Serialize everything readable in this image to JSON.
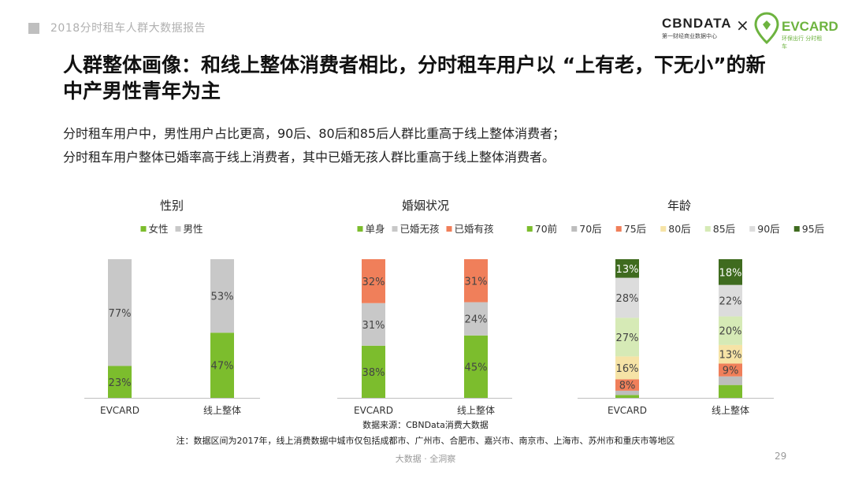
{
  "header": {
    "title": "2018分时租车人群大数据报告"
  },
  "brand": {
    "cbn_name": "CBNDATA",
    "cbn_sub": "第一财经商业数据中心",
    "times": "×",
    "ev_name": "EVCARD",
    "ev_sub": "环保出行 分时租车"
  },
  "main": {
    "title": "人群整体画像：和线上整体消费者相比，分时租车用户以 “上有老，下无小”的新中产男性青年为主",
    "sub1": "分时租车用户中，男性用户占比更高，90后、80后和85后人群比重高于线上整体消费者；",
    "sub2": "分时租车用户整体已婚率高于线上消费者，其中已婚无孩人群比重高于线上整体消费者。"
  },
  "chart_data": [
    {
      "type": "bar",
      "stacked": true,
      "title": "性别",
      "categories": [
        "EVCARD",
        "线上整体"
      ],
      "series": [
        {
          "name": "女性",
          "values": [
            23,
            47
          ],
          "color": "#7cbd2d"
        },
        {
          "name": "男性",
          "values": [
            77,
            53
          ],
          "color": "#c8c8c8"
        }
      ],
      "ylim": [
        0,
        100
      ]
    },
    {
      "type": "bar",
      "stacked": true,
      "title": "婚姻状况",
      "categories": [
        "EVCARD",
        "线上整体"
      ],
      "series": [
        {
          "name": "单身",
          "values": [
            38,
            45
          ],
          "color": "#7cbd2d"
        },
        {
          "name": "已婚无孩",
          "values": [
            31,
            24
          ],
          "color": "#c8c8c8"
        },
        {
          "name": "已婚有孩",
          "values": [
            32,
            31
          ],
          "color": "#f07f5a"
        }
      ],
      "ylim": [
        0,
        100
      ]
    },
    {
      "type": "bar",
      "stacked": true,
      "title": "年龄",
      "categories": [
        "EVCARD",
        "线上整体"
      ],
      "series": [
        {
          "name": "70前",
          "values": [
            2,
            9
          ],
          "color": "#7cbd2d",
          "labels": [
            "",
            ""
          ]
        },
        {
          "name": "70后",
          "values": [
            3,
            6
          ],
          "color": "#bdbdbd",
          "labels": [
            "",
            ""
          ]
        },
        {
          "name": "75后",
          "values": [
            8,
            9
          ],
          "color": "#f07f5a",
          "labels": [
            "8%",
            "9%"
          ]
        },
        {
          "name": "80后",
          "values": [
            16,
            13
          ],
          "color": "#f6e3a6",
          "labels": [
            "16%",
            "13%"
          ]
        },
        {
          "name": "85后",
          "values": [
            27,
            20
          ],
          "color": "#d6eab6",
          "labels": [
            "27%",
            "20%"
          ]
        },
        {
          "name": "90后",
          "values": [
            28,
            22
          ],
          "color": "#dcdcdc",
          "labels": [
            "28%",
            "22%"
          ]
        },
        {
          "name": "95后",
          "values": [
            13,
            18
          ],
          "color": "#3f6b1f",
          "labels": [
            "13%",
            "18%"
          ]
        }
      ],
      "ylim": [
        0,
        100
      ]
    }
  ],
  "notes": {
    "source": "数据来源：CBNData消费大数据",
    "note": "注：数据区间为2017年，线上消费数据中城市仅包括成都市、广州市、合肥市、嘉兴市、南京市、上海市、苏州市和重庆市等地区"
  },
  "footer": {
    "center": "大数据 · 全洞察",
    "page": "29"
  }
}
